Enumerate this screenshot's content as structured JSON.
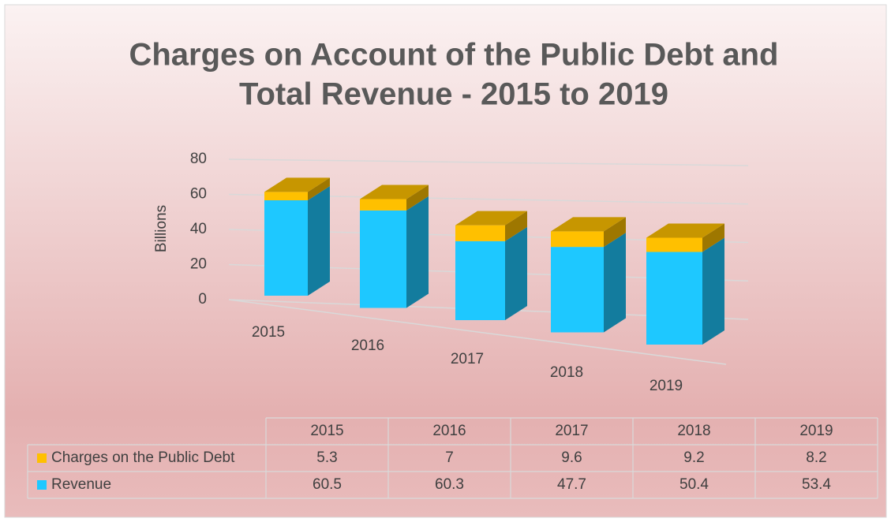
{
  "chart_data": {
    "type": "bar",
    "stacked": true,
    "title": "Charges on Account of the Public Debt and",
    "title_line2": "Total Revenue - 2015 to 2019",
    "y_label": "Billions",
    "categories": [
      "2015",
      "2016",
      "2017",
      "2018",
      "2019"
    ],
    "series": [
      {
        "name": "Charges on the Public Debt",
        "color": "#ffc000",
        "values": [
          5.3,
          7,
          9.6,
          9.2,
          8.2
        ]
      },
      {
        "name": "Revenue",
        "color": "#1ec8ff",
        "values": [
          60.5,
          60.3,
          47.7,
          50.4,
          53.4
        ]
      }
    ],
    "ylim": [
      0,
      80
    ],
    "yticks": [
      0,
      20,
      40,
      60,
      80
    ],
    "grid": true,
    "data_table": true
  }
}
